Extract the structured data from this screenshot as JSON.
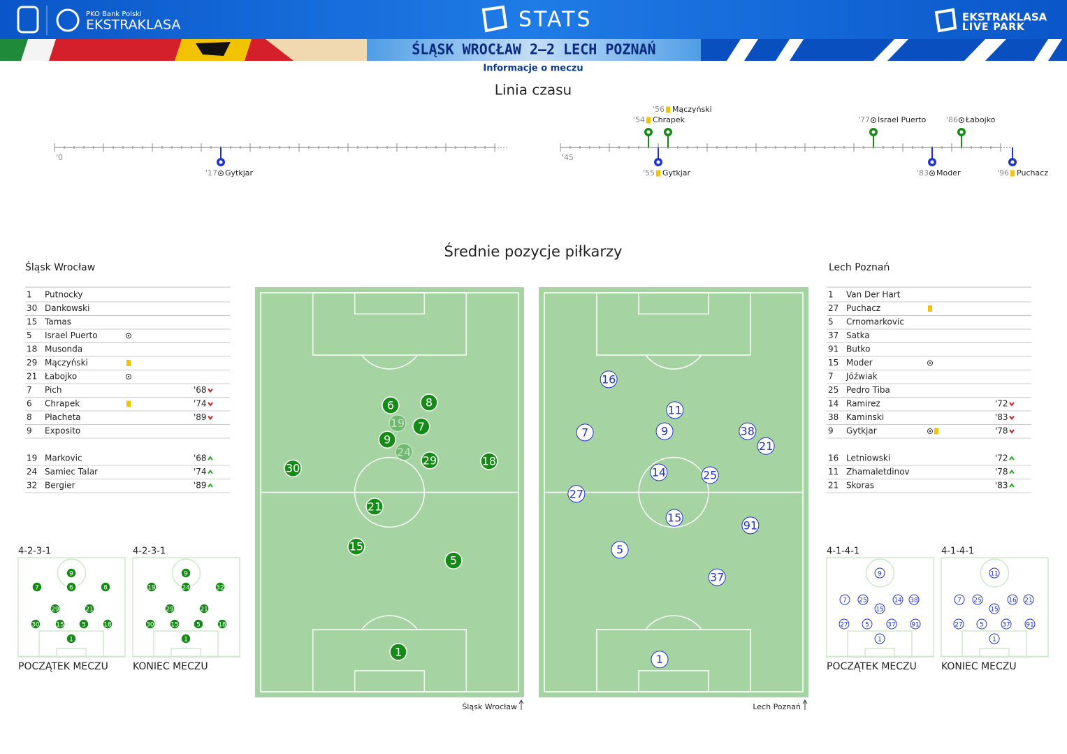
{
  "header": {
    "sponsor": "PKO Bank Polski",
    "league": "EKSTRAKLASA",
    "section": "STATS",
    "app_line1": "EKSTRAKLASA",
    "app_line2": "LIVE PARK",
    "match": "ŚLĄSK WROCŁAW 2–2 LECH POZNAŃ",
    "info_link": "Informacje o meczu"
  },
  "timeline": {
    "title": "Linia czasu",
    "halves": [
      {
        "start": {
          "value": 0,
          "label": "'0"
        },
        "range": [
          0,
          45
        ],
        "events": [
          {
            "minute": {
              "value": 17,
              "label": "'17"
            },
            "player": "Gytkjar",
            "type": "goal",
            "team": 1
          }
        ]
      },
      {
        "start": {
          "value": 45,
          "label": "'45"
        },
        "range": [
          45,
          90
        ],
        "events": [
          {
            "minute": {
              "value": 54,
              "label": "'54"
            },
            "player": "Chrapek",
            "type": "yellow",
            "team": 0
          },
          {
            "minute": {
              "value": 55,
              "label": "'55"
            },
            "player": "Gytkjar",
            "type": "yellow",
            "team": 1
          },
          {
            "minute": {
              "value": 56,
              "label": "'56"
            },
            "player": "Mączyński",
            "type": "yellow",
            "team": 0
          },
          {
            "minute": {
              "value": 77,
              "label": "'77"
            },
            "player": "Israel Puerto",
            "type": "goal",
            "team": 0
          },
          {
            "minute": {
              "value": 83,
              "label": "'83"
            },
            "player": "Moder",
            "type": "goal",
            "team": 1
          },
          {
            "minute": {
              "value": 86,
              "label": "'86"
            },
            "player": "Łabojko",
            "type": "goal",
            "team": 0
          },
          {
            "minute": {
              "value": 96,
              "label": "'96"
            },
            "player": "Puchacz",
            "type": "yellow",
            "team": 1
          }
        ]
      }
    ]
  },
  "positions": {
    "title": "Średnie pozycje piłkarzy"
  },
  "teams": [
    {
      "name": "Śląsk Wrocław",
      "color": "#168a16",
      "players": [
        {
          "number": 1,
          "name": "Putnocky"
        },
        {
          "number": 30,
          "name": "Dankowski"
        },
        {
          "number": 15,
          "name": "Tamas"
        },
        {
          "number": 5,
          "name": "Israel Puerto",
          "events": [
            "goal"
          ]
        },
        {
          "number": 18,
          "name": "Musonda"
        },
        {
          "number": 29,
          "name": "Mączyński",
          "events": [
            "yellow"
          ]
        },
        {
          "number": 21,
          "name": "Łabojko",
          "events": [
            "goal"
          ]
        },
        {
          "number": 7,
          "name": "Pich",
          "off": "'68"
        },
        {
          "number": 6,
          "name": "Chrapek",
          "events": [
            "yellow"
          ],
          "off": "'74"
        },
        {
          "number": 8,
          "name": "Płacheta",
          "off": "'89"
        },
        {
          "number": 9,
          "name": "Exposito"
        }
      ],
      "subs": [
        {
          "number": 19,
          "name": "Markovic",
          "on": "'68"
        },
        {
          "number": 24,
          "name": "Samiec Talar",
          "on": "'74"
        },
        {
          "number": 32,
          "name": "Bergier",
          "on": "'89"
        }
      ],
      "pitch": [
        {
          "number": 6,
          "x": 50.4,
          "y": 28.2
        },
        {
          "number": 8,
          "x": 65.3,
          "y": 27.5
        },
        {
          "number": 19,
          "x": 53.1,
          "y": 32.7,
          "faded": true
        },
        {
          "number": 7,
          "x": 62.3,
          "y": 33.5
        },
        {
          "number": 9,
          "x": 49.1,
          "y": 36.8
        },
        {
          "number": 24,
          "x": 55.6,
          "y": 39.9,
          "faded": true
        },
        {
          "number": 29,
          "x": 65.6,
          "y": 42.0
        },
        {
          "number": 30,
          "x": 12.5,
          "y": 44.0
        },
        {
          "number": 18,
          "x": 88.6,
          "y": 42.2
        },
        {
          "number": 21,
          "x": 44.2,
          "y": 53.6
        },
        {
          "number": 15,
          "x": 37.1,
          "y": 63.6
        },
        {
          "number": 5,
          "x": 74.8,
          "y": 67.1
        },
        {
          "number": 1,
          "x": 53.4,
          "y": 90.0
        }
      ],
      "pitch_caption": "Śląsk Wrocław",
      "formations": [
        {
          "label": "4-2-3-1",
          "caption": "POCZĄTEK MECZU",
          "players": [
            {
              "number": 9,
              "x": 49.7,
              "y": 15.5
            },
            {
              "number": 7,
              "x": 17.6,
              "y": 29.6
            },
            {
              "number": 6,
              "x": 49.7,
              "y": 29.6
            },
            {
              "number": 8,
              "x": 81.7,
              "y": 29.6
            },
            {
              "number": 29,
              "x": 34.6,
              "y": 51.4
            },
            {
              "number": 21,
              "x": 66.7,
              "y": 51.4
            },
            {
              "number": 30,
              "x": 16.3,
              "y": 66.9
            },
            {
              "number": 15,
              "x": 39.2,
              "y": 66.9
            },
            {
              "number": 5,
              "x": 61.4,
              "y": 66.9
            },
            {
              "number": 18,
              "x": 83.7,
              "y": 66.9
            },
            {
              "number": 1,
              "x": 49.7,
              "y": 81.7
            }
          ]
        },
        {
          "label": "4-2-3-1",
          "caption": "KONIEC MECZU",
          "players": [
            {
              "number": 9,
              "x": 49.7,
              "y": 15.5
            },
            {
              "number": 19,
              "x": 17.6,
              "y": 29.6
            },
            {
              "number": 24,
              "x": 49.7,
              "y": 29.6
            },
            {
              "number": 32,
              "x": 81.7,
              "y": 29.6
            },
            {
              "number": 29,
              "x": 34.6,
              "y": 51.4
            },
            {
              "number": 21,
              "x": 66.7,
              "y": 51.4
            },
            {
              "number": 30,
              "x": 16.3,
              "y": 66.9
            },
            {
              "number": 15,
              "x": 39.2,
              "y": 66.9
            },
            {
              "number": 5,
              "x": 61.4,
              "y": 66.9
            },
            {
              "number": 18,
              "x": 83.7,
              "y": 66.9
            },
            {
              "number": 1,
              "x": 49.7,
              "y": 81.7
            }
          ]
        }
      ]
    },
    {
      "name": "Lech Poznań",
      "color": "#2233cc",
      "players": [
        {
          "number": 1,
          "name": "Van Der Hart"
        },
        {
          "number": 27,
          "name": "Puchacz",
          "events": [
            "yellow"
          ]
        },
        {
          "number": 5,
          "name": "Crnomarkovic"
        },
        {
          "number": 37,
          "name": "Satka"
        },
        {
          "number": 91,
          "name": "Butko"
        },
        {
          "number": 15,
          "name": "Moder",
          "events": [
            "goal"
          ]
        },
        {
          "number": 7,
          "name": "Jóźwiak"
        },
        {
          "number": 25,
          "name": "Pedro Tiba"
        },
        {
          "number": 14,
          "name": "Ramirez",
          "off": "'72"
        },
        {
          "number": 38,
          "name": "Kaminski",
          "off": "'83"
        },
        {
          "number": 9,
          "name": "Gytkjar",
          "events": [
            "goal",
            "yellow"
          ],
          "off": "'78"
        }
      ],
      "subs": [
        {
          "number": 16,
          "name": "Letniowski",
          "on": "'72"
        },
        {
          "number": 11,
          "name": "Zhamaletdinov",
          "on": "'78"
        },
        {
          "number": 21,
          "name": "Skoras",
          "on": "'83"
        }
      ],
      "pitch": [
        {
          "number": 16,
          "x": 24.9,
          "y": 21.7
        },
        {
          "number": 11,
          "x": 50.5,
          "y": 29.4
        },
        {
          "number": 7,
          "x": 15.7,
          "y": 35.0
        },
        {
          "number": 9,
          "x": 46.5,
          "y": 34.7
        },
        {
          "number": 38,
          "x": 78.6,
          "y": 34.7
        },
        {
          "number": 21,
          "x": 85.7,
          "y": 38.4
        },
        {
          "number": 14,
          "x": 44.3,
          "y": 45.0
        },
        {
          "number": 25,
          "x": 64.1,
          "y": 45.7
        },
        {
          "number": 27,
          "x": 12.4,
          "y": 50.4
        },
        {
          "number": 15,
          "x": 50.3,
          "y": 56.4
        },
        {
          "number": 91,
          "x": 79.7,
          "y": 58.3
        },
        {
          "number": 5,
          "x": 29.2,
          "y": 64.4
        },
        {
          "number": 37,
          "x": 66.8,
          "y": 71.3
        },
        {
          "number": 1,
          "x": 44.6,
          "y": 91.9
        }
      ],
      "pitch_caption": "Lech Poznań",
      "formations": [
        {
          "label": "4-1-4-1",
          "caption": "POCZĄTEK MECZU",
          "players": [
            {
              "number": 9,
              "x": 49.7,
              "y": 15.5
            },
            {
              "number": 7,
              "x": 17.0,
              "y": 42.3
            },
            {
              "number": 25,
              "x": 34.0,
              "y": 42.3
            },
            {
              "number": 15,
              "x": 49.7,
              "y": 51.4
            },
            {
              "number": 14,
              "x": 66.7,
              "y": 42.3
            },
            {
              "number": 38,
              "x": 81.7,
              "y": 42.3
            },
            {
              "number": 27,
              "x": 16.3,
              "y": 66.9
            },
            {
              "number": 5,
              "x": 37.9,
              "y": 66.9
            },
            {
              "number": 37,
              "x": 60.8,
              "y": 66.9
            },
            {
              "number": 91,
              "x": 83.0,
              "y": 66.9
            },
            {
              "number": 1,
              "x": 49.7,
              "y": 81.7
            }
          ]
        },
        {
          "label": "4-1-4-1",
          "caption": "KONIEC MECZU",
          "players": [
            {
              "number": 11,
              "x": 49.7,
              "y": 15.5
            },
            {
              "number": 7,
              "x": 17.0,
              "y": 42.3
            },
            {
              "number": 25,
              "x": 34.0,
              "y": 42.3
            },
            {
              "number": 15,
              "x": 49.7,
              "y": 51.4
            },
            {
              "number": 16,
              "x": 66.7,
              "y": 42.3
            },
            {
              "number": 21,
              "x": 81.7,
              "y": 42.3
            },
            {
              "number": 27,
              "x": 16.3,
              "y": 66.9
            },
            {
              "number": 5,
              "x": 37.9,
              "y": 66.9
            },
            {
              "number": 37,
              "x": 60.8,
              "y": 66.9
            },
            {
              "number": 91,
              "x": 83.0,
              "y": 66.9
            },
            {
              "number": 1,
              "x": 49.7,
              "y": 81.7
            }
          ]
        }
      ]
    }
  ]
}
